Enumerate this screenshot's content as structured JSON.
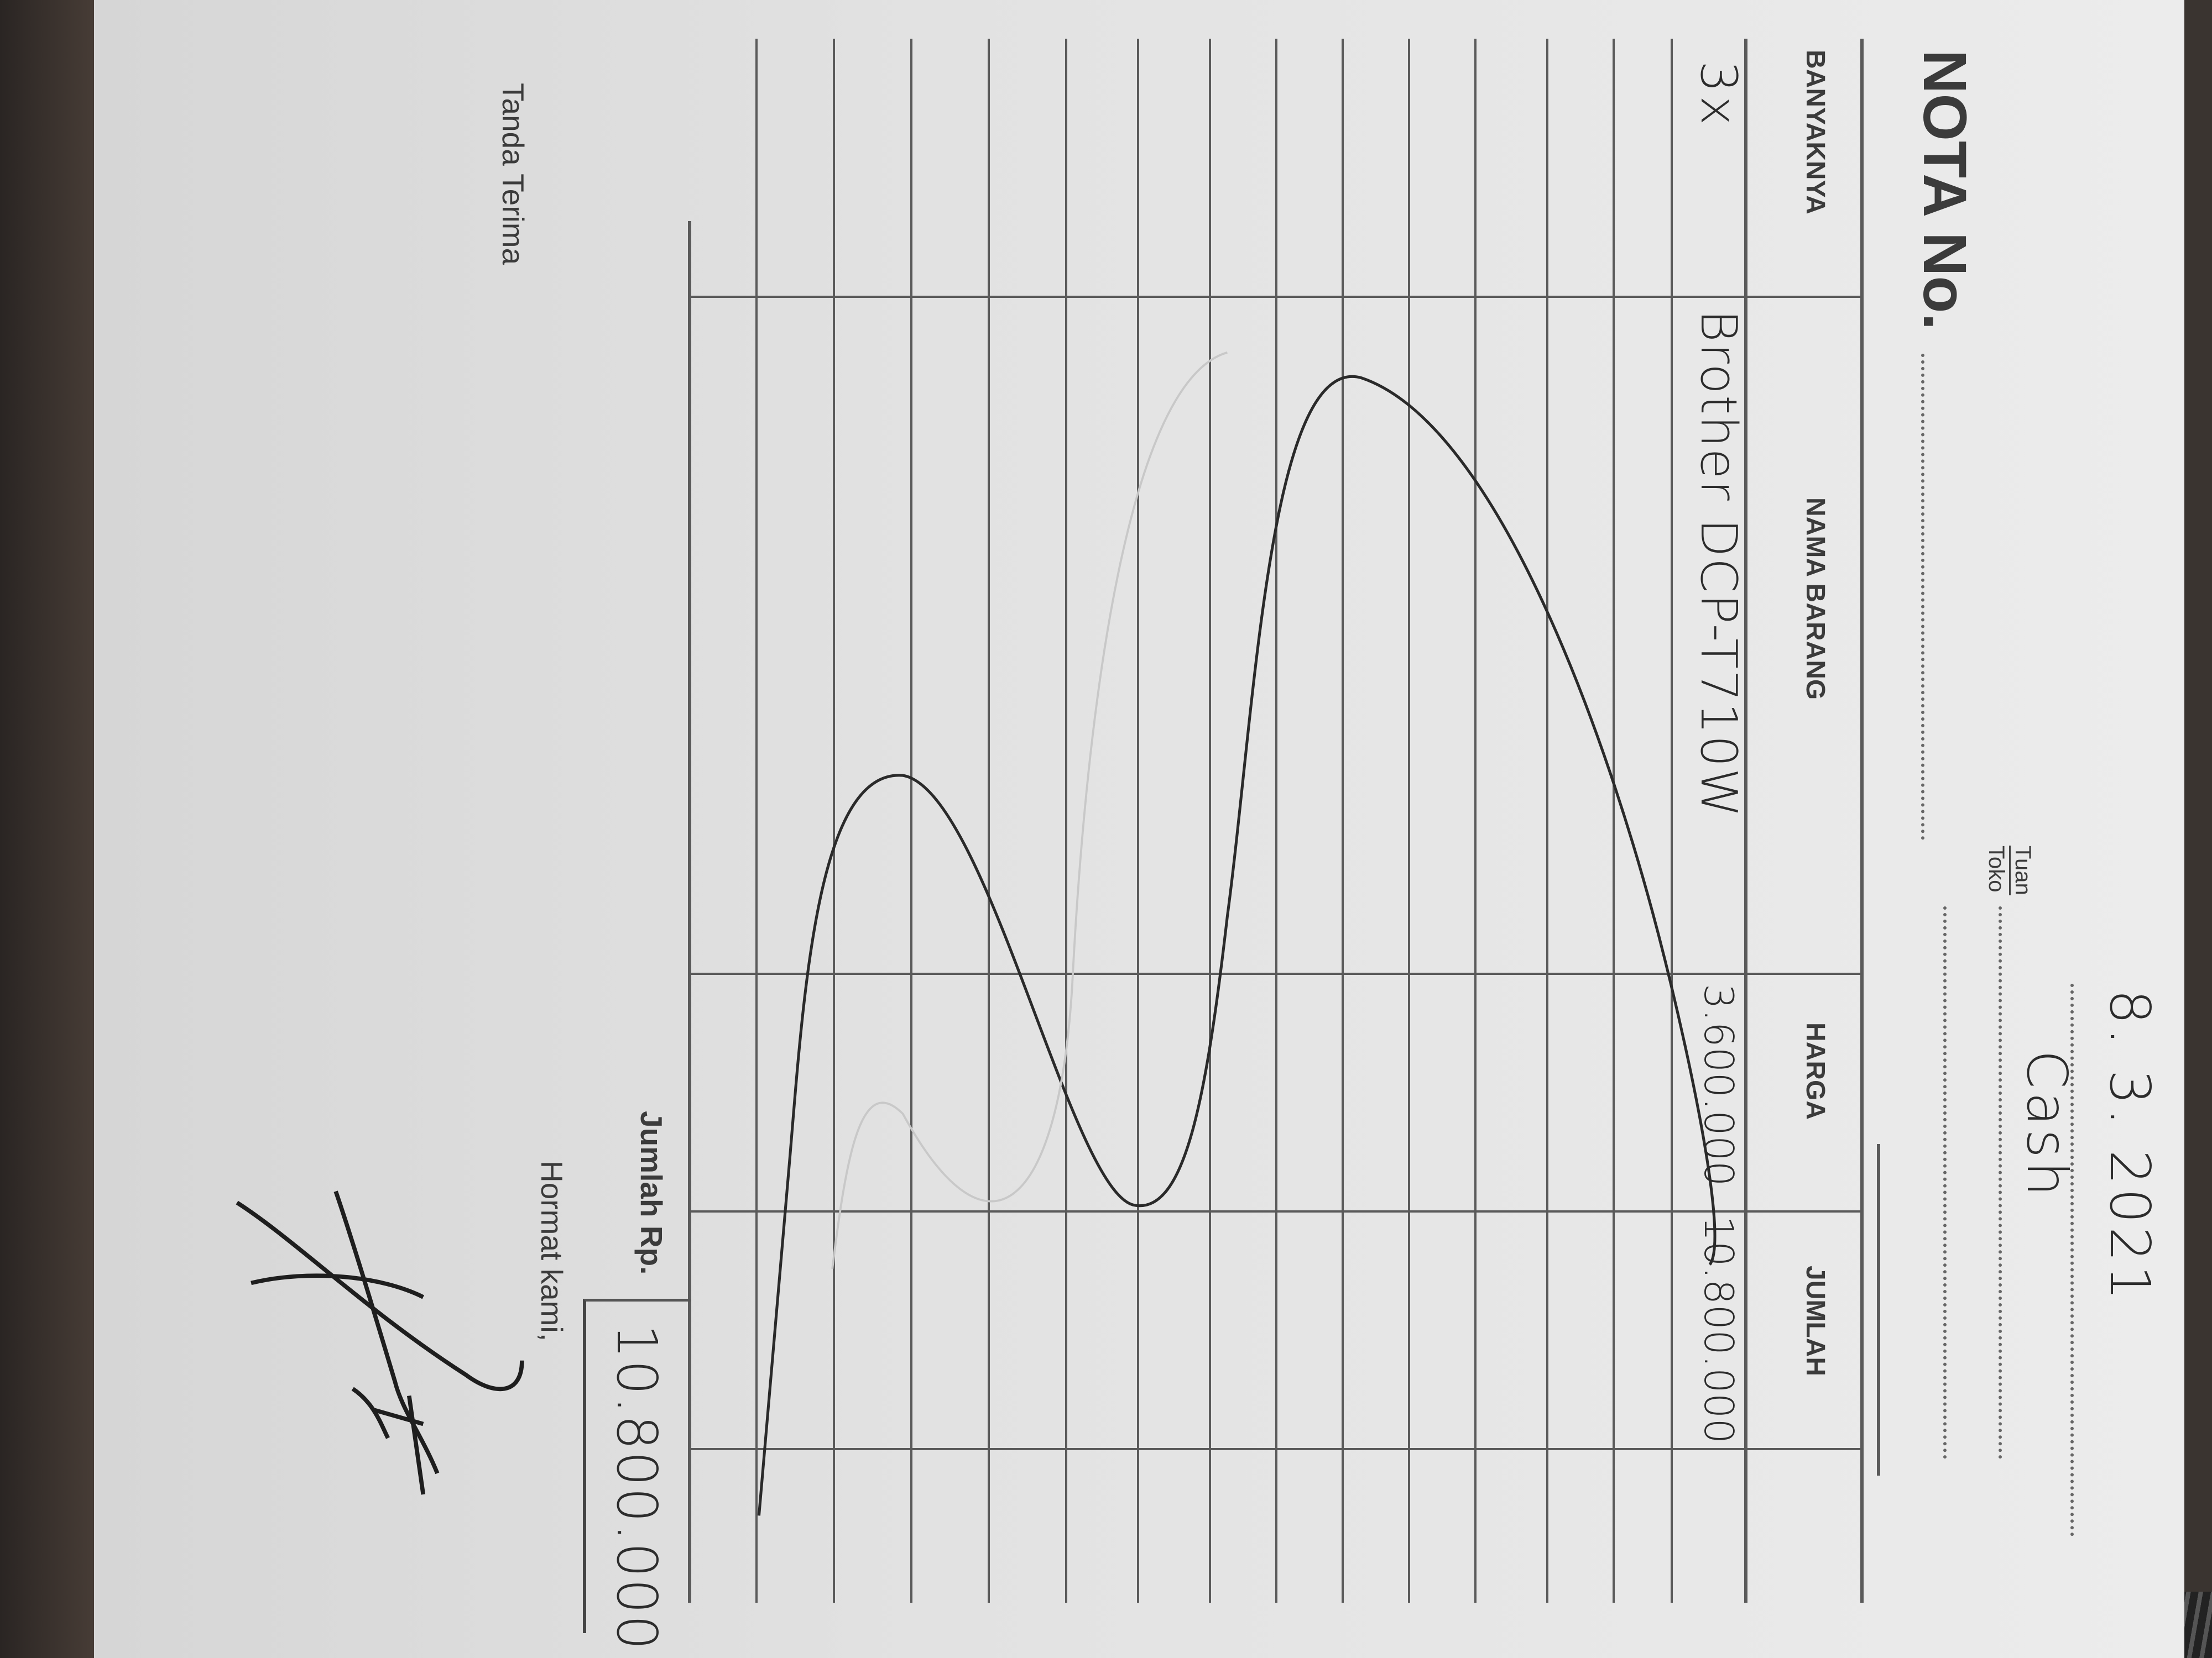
{
  "receipt": {
    "title": "NOTA No.",
    "date": "8. 3. 2021",
    "tuan_label": "Tuan",
    "toko_label": "Toko",
    "tuan_value": "Cash",
    "columns": [
      "BANYAKNYA",
      "NAMA BARANG",
      "HARGA",
      "JUMLAH"
    ],
    "rows": [
      {
        "qty": "3x",
        "item": "Brother DCP-T710W",
        "price": "3.600.000",
        "amount": "10.800.000"
      }
    ],
    "total_label": "Jumlah Rp.",
    "total_value": "10.800.000",
    "received_label": "Tanda Terima",
    "regards_label": "Hormat kami,"
  }
}
